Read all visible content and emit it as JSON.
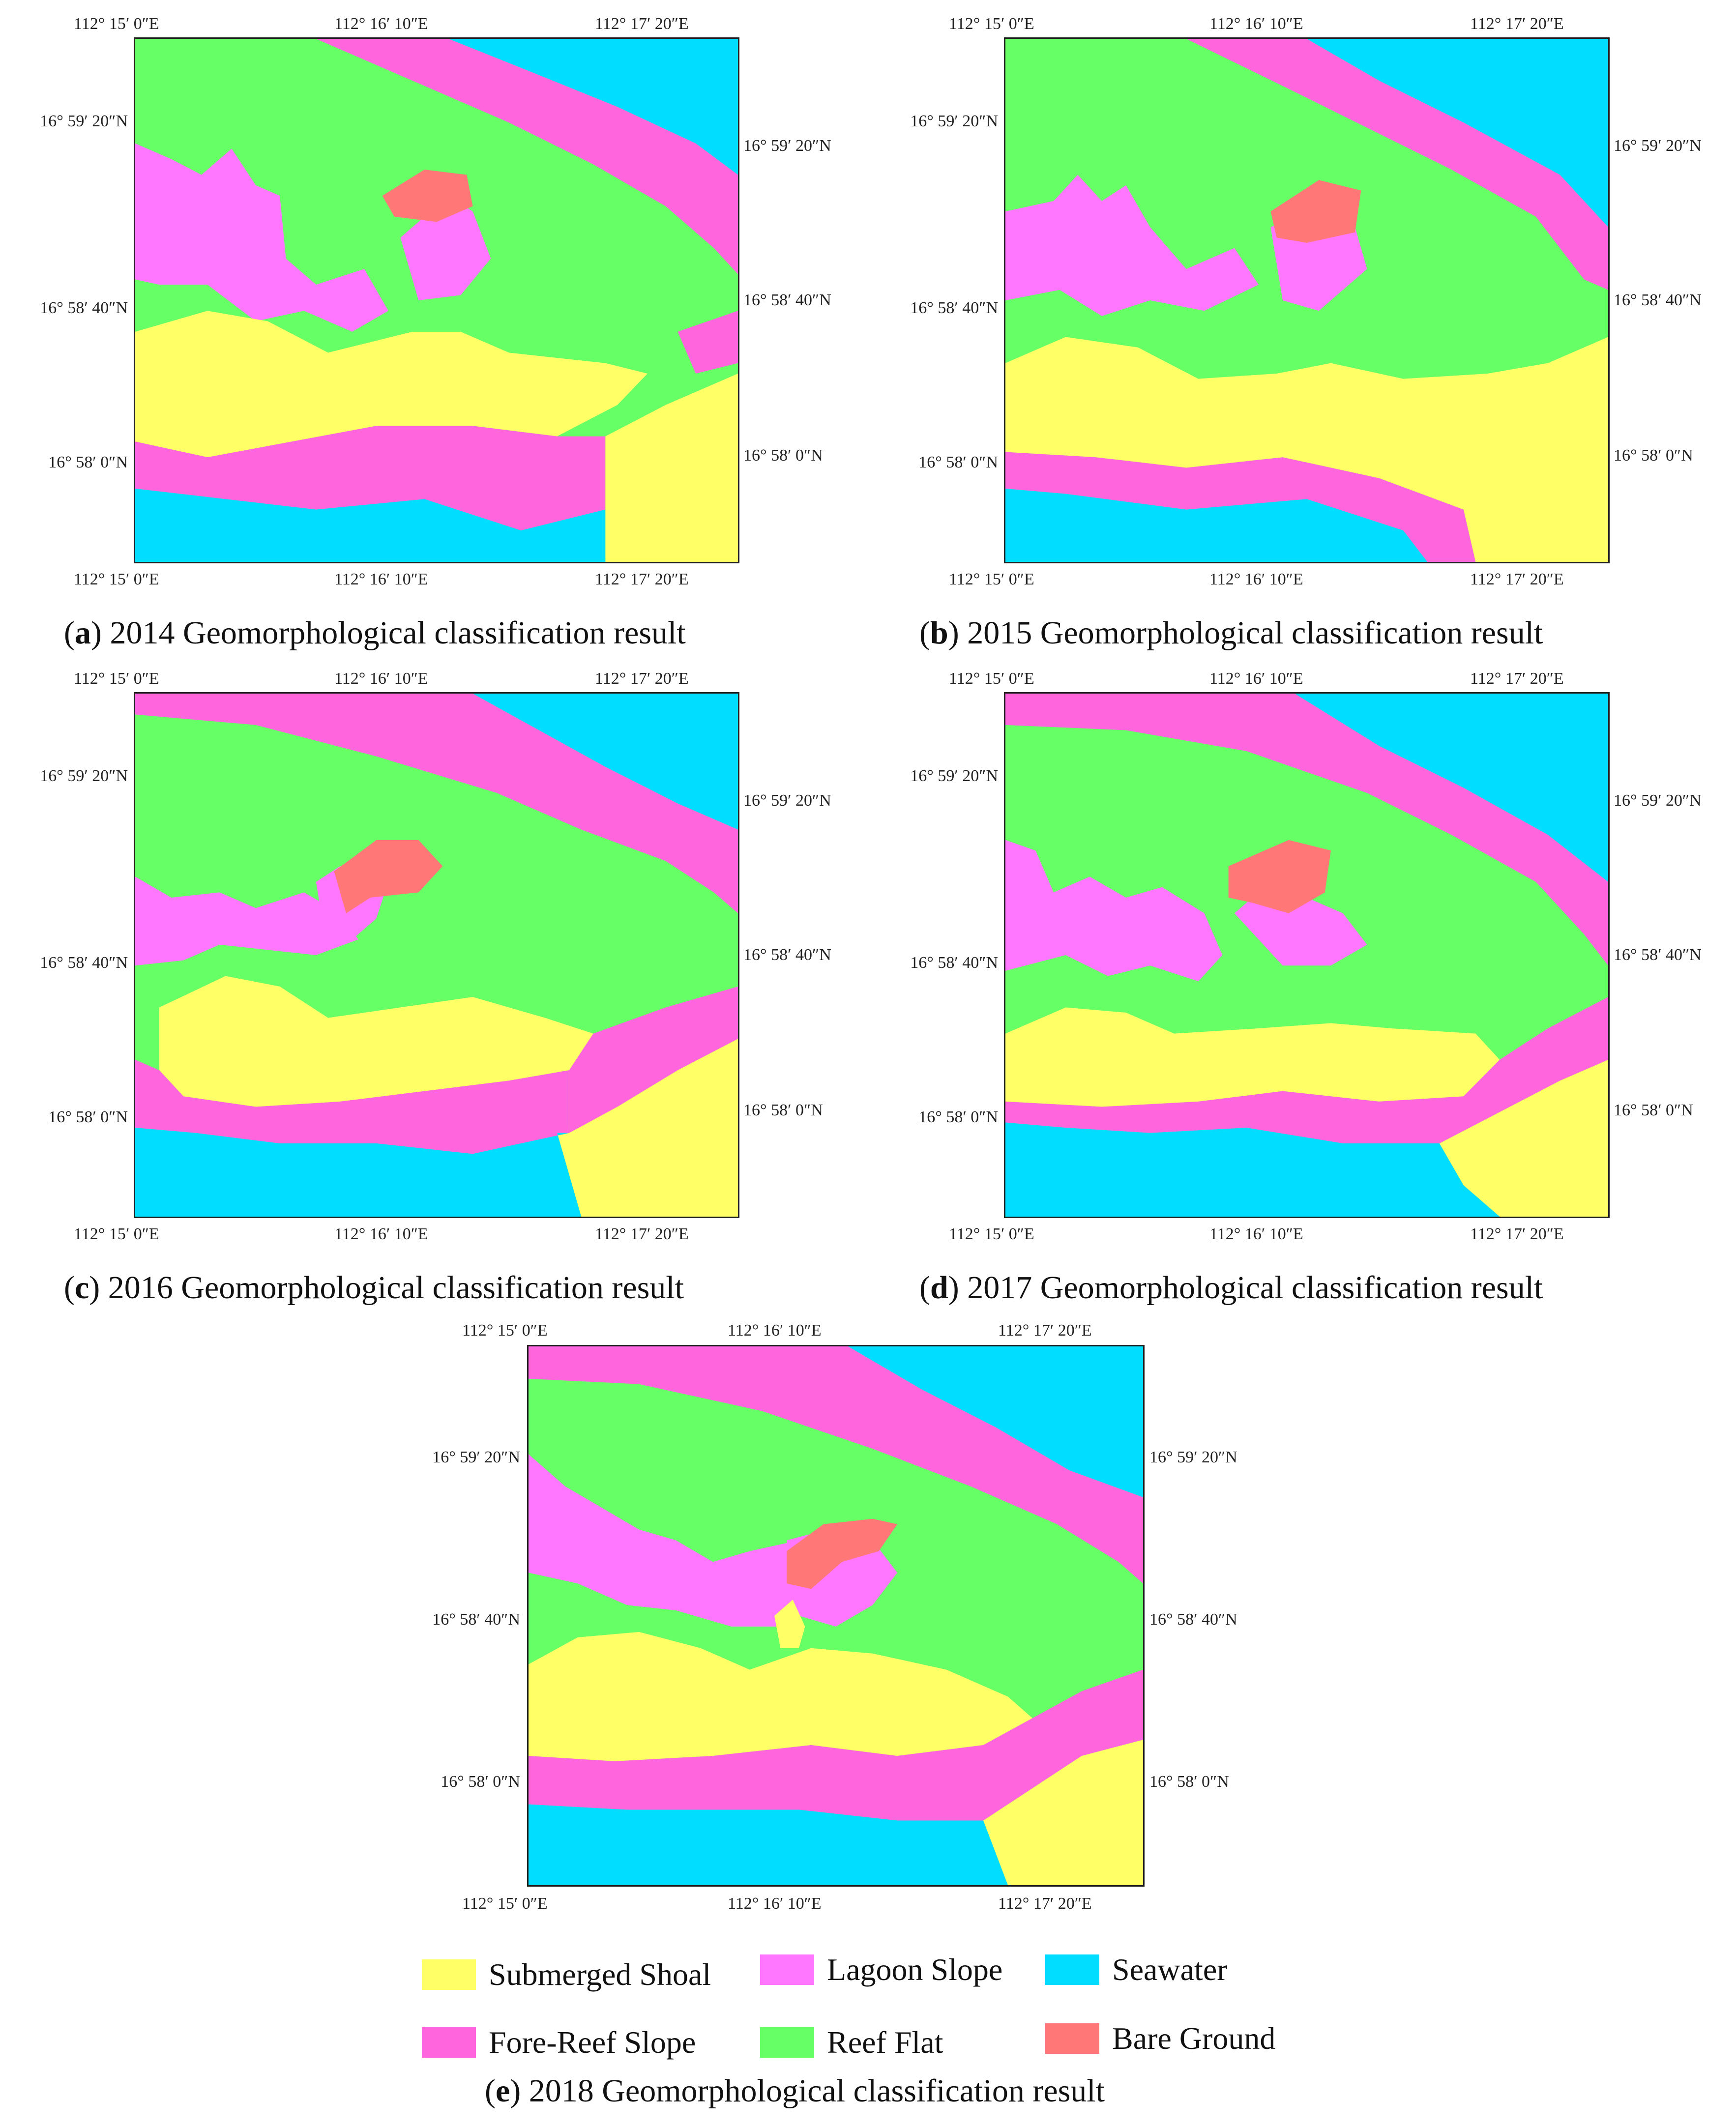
{
  "panels": [
    {
      "letter": "a",
      "caption": "2014 Geomorphological classification result"
    },
    {
      "letter": "b",
      "caption": "2015 Geomorphological classification result"
    },
    {
      "letter": "c",
      "caption": "2016 Geomorphological classification result"
    },
    {
      "letter": "d",
      "caption": "2017 Geomorphological classification result"
    },
    {
      "letter": "e",
      "caption": "2018 Geomorphological classification result"
    }
  ],
  "axes": {
    "lon_ticks": [
      "112° 15′ 0″E",
      "112° 16′ 10″E",
      "112° 17′ 20″E"
    ],
    "lat_ticks": [
      "16° 59′ 20″N",
      "16° 58′ 40″N",
      "16° 58′ 0″N"
    ]
  },
  "legend": [
    {
      "label": "Submerged Shoal",
      "color": "#ffff66"
    },
    {
      "label": "Lagoon Slope",
      "color": "#ff77ff"
    },
    {
      "label": "Seawater",
      "color": "#00ddff"
    },
    {
      "label": "Fore-Reef Slope",
      "color": "#ff66dd"
    },
    {
      "label": "Reef Flat",
      "color": "#66ff66"
    },
    {
      "label": "Bare Ground",
      "color": "#ff7777"
    }
  ],
  "colors": {
    "submerged_shoal": "#ffff66",
    "lagoon_slope": "#ff77ff",
    "seawater": "#00ddff",
    "fore_reef_slope": "#ff66dd",
    "reef_flat": "#66ff66",
    "bare_ground": "#ff7777"
  }
}
